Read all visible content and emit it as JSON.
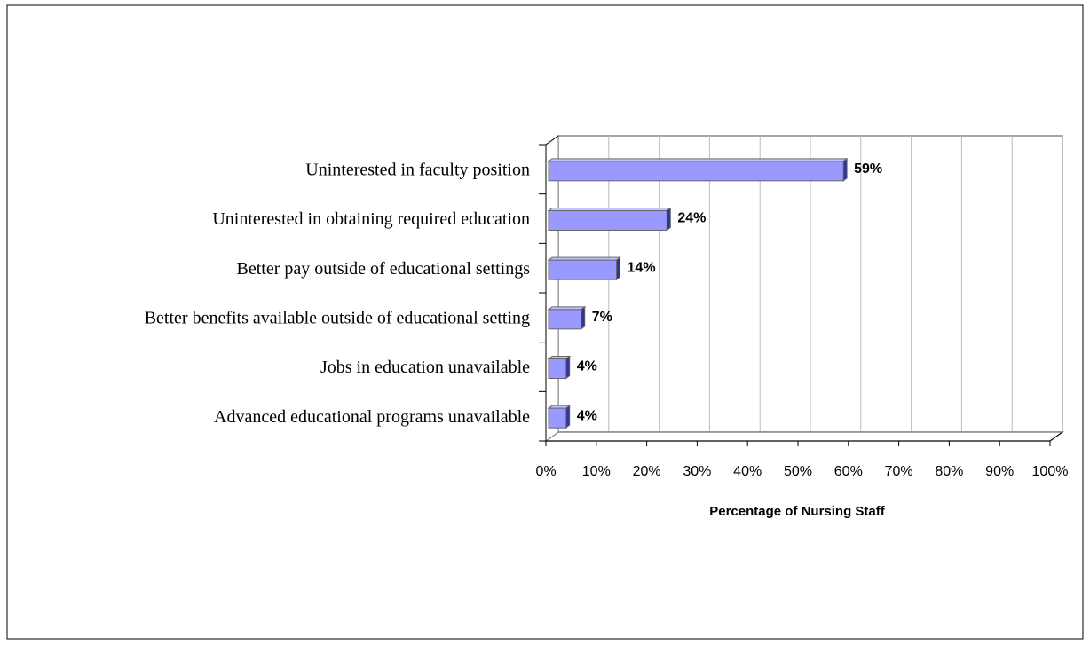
{
  "chart_data": {
    "type": "bar",
    "orientation": "horizontal",
    "x_label": "Percentage of Nursing Staff",
    "categories": [
      "Uninterested in faculty position",
      "Uninterested in obtaining required education",
      "Better pay outside of educational settings",
      "Better benefits available outside of educational setting",
      "Jobs in education unavailable",
      "Advanced educational programs unavailable"
    ],
    "values": [
      59,
      24,
      14,
      7,
      4,
      4
    ],
    "value_labels": [
      "59%",
      "24%",
      "14%",
      "7%",
      "4%",
      "4%"
    ],
    "color": "#9999ff",
    "xlim": [
      0,
      100
    ],
    "xticks": [
      {
        "value": 0,
        "label": "0%"
      },
      {
        "value": 10,
        "label": "10%"
      },
      {
        "value": 20,
        "label": "20%"
      },
      {
        "value": 30,
        "label": "30%"
      },
      {
        "value": 40,
        "label": "40%"
      },
      {
        "value": 50,
        "label": "50%"
      },
      {
        "value": 60,
        "label": "60%"
      },
      {
        "value": 70,
        "label": "70%"
      },
      {
        "value": 80,
        "label": "80%"
      },
      {
        "value": 90,
        "label": "90%"
      },
      {
        "value": 100,
        "label": "100%"
      }
    ],
    "grid": true
  }
}
